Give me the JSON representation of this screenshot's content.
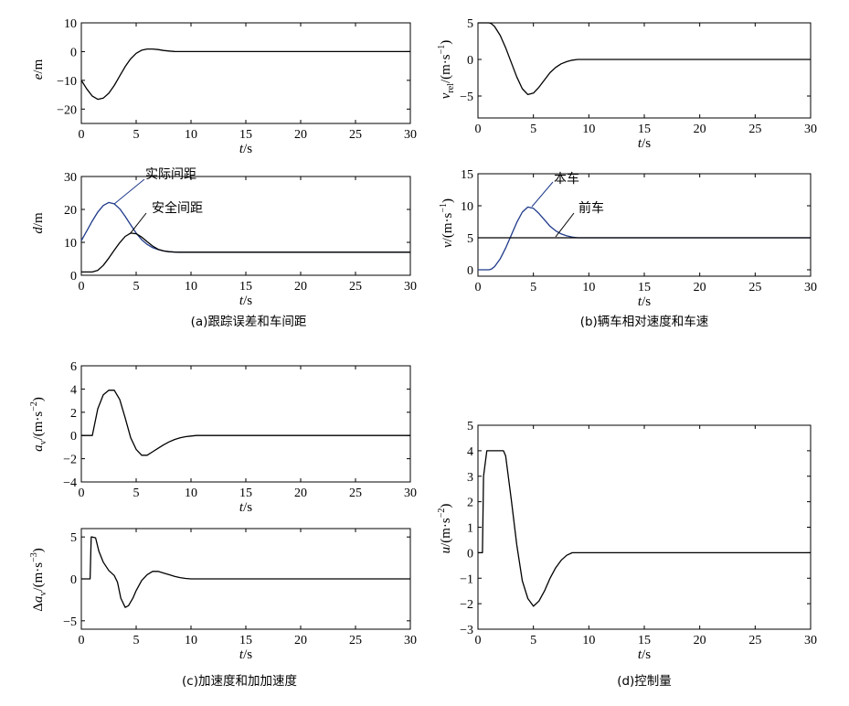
{
  "captions": {
    "a": "(a)跟踪误差和车间距",
    "b": "(b)辆车相对速度和车速",
    "c": "(c)加速度和加加速度",
    "d": "(d)控制量"
  },
  "colors": {
    "black": "#000000",
    "blue": "#1f3a8a"
  },
  "chart_data": [
    {
      "id": "e",
      "type": "line",
      "xlabel": "t/s",
      "ylabel": "e/m",
      "xlim": [
        0,
        30
      ],
      "ylim": [
        -25,
        10
      ],
      "xticks": [
        0,
        5,
        10,
        15,
        20,
        25,
        30
      ],
      "yticks": [
        -20,
        -10,
        0,
        10
      ],
      "series": [
        {
          "color": "#000000",
          "x": [
            0,
            0.5,
            1,
            1.5,
            2,
            2.5,
            3,
            3.5,
            4,
            4.5,
            5,
            5.5,
            6,
            6.5,
            7,
            7.5,
            8,
            8.5,
            9,
            10,
            30
          ],
          "y": [
            -10,
            -13,
            -15.5,
            -16.6,
            -16.2,
            -14.5,
            -11.8,
            -8.5,
            -5.2,
            -2.5,
            -0.6,
            0.5,
            0.9,
            0.9,
            0.7,
            0.4,
            0.2,
            0.05,
            0,
            0,
            0
          ]
        }
      ]
    },
    {
      "id": "d",
      "type": "line",
      "xlabel": "t/s",
      "ylabel": "d/m",
      "xlim": [
        0,
        30
      ],
      "ylim": [
        0,
        30
      ],
      "xticks": [
        0,
        5,
        10,
        15,
        20,
        25,
        30
      ],
      "yticks": [
        0,
        10,
        20,
        30
      ],
      "annotations": [
        "实际间距",
        "安全间距"
      ],
      "series": [
        {
          "color": "#1f3a8a",
          "x": [
            0,
            0.5,
            1,
            1.5,
            2,
            2.5,
            3,
            3.5,
            4,
            4.5,
            5,
            5.5,
            6,
            6.5,
            7,
            7.5,
            8,
            8.5,
            9,
            10,
            30
          ],
          "y": [
            10.5,
            13.5,
            16.5,
            19.2,
            21.2,
            22.1,
            21.7,
            20.2,
            17.9,
            15.3,
            12.8,
            10.8,
            9.4,
            8.4,
            7.8,
            7.4,
            7.2,
            7.05,
            7,
            7,
            7
          ]
        },
        {
          "color": "#000000",
          "x": [
            0,
            0.5,
            1,
            1.5,
            2,
            2.5,
            3,
            3.5,
            4,
            4.5,
            5,
            5.5,
            6,
            6.5,
            7,
            7.5,
            8,
            8.5,
            9,
            10,
            30
          ],
          "y": [
            1,
            1,
            1,
            1.5,
            3,
            5.2,
            7.6,
            9.9,
            11.8,
            12.8,
            12.6,
            11.6,
            10.2,
            8.9,
            7.9,
            7.4,
            7.15,
            7.05,
            7,
            7,
            7
          ]
        }
      ]
    },
    {
      "id": "vrel",
      "type": "line",
      "xlabel": "t/s",
      "ylabel": "vrel/(m·s⁻¹)",
      "xlim": [
        0,
        30
      ],
      "ylim": [
        -8,
        5
      ],
      "xticks": [
        0,
        5,
        10,
        15,
        20,
        25,
        30
      ],
      "yticks": [
        -5,
        0,
        5
      ],
      "series": [
        {
          "color": "#000000",
          "x": [
            0,
            0.5,
            1,
            1.2,
            1.5,
            2,
            2.5,
            3,
            3.5,
            4,
            4.5,
            5,
            5.5,
            6,
            6.5,
            7,
            7.5,
            8,
            8.5,
            9,
            10,
            30
          ],
          "y": [
            5,
            5,
            5,
            4.9,
            4.5,
            3.3,
            1.6,
            -0.4,
            -2.4,
            -4,
            -4.8,
            -4.6,
            -3.8,
            -2.8,
            -1.8,
            -1.1,
            -0.6,
            -0.3,
            -0.1,
            0,
            0,
            0
          ]
        }
      ]
    },
    {
      "id": "v",
      "type": "line",
      "xlabel": "t/s",
      "ylabel": "v/(m·s⁻¹)",
      "xlim": [
        0,
        30
      ],
      "ylim": [
        -1,
        15
      ],
      "xticks": [
        0,
        5,
        10,
        15,
        20,
        25,
        30
      ],
      "yticks": [
        0,
        5,
        10,
        15
      ],
      "annotations": [
        "本车",
        "前车"
      ],
      "series": [
        {
          "color": "#1f3a8a",
          "x": [
            0,
            0.5,
            1,
            1.2,
            1.5,
            2,
            2.5,
            3,
            3.5,
            4,
            4.5,
            5,
            5.5,
            6,
            6.5,
            7,
            7.5,
            8,
            8.5,
            9,
            10,
            30
          ],
          "y": [
            0,
            0,
            0,
            0.1,
            0.5,
            1.7,
            3.4,
            5.4,
            7.4,
            9,
            9.8,
            9.6,
            8.8,
            7.8,
            6.8,
            6.1,
            5.6,
            5.3,
            5.1,
            5,
            5,
            5
          ]
        },
        {
          "color": "#000000",
          "x": [
            0,
            30
          ],
          "y": [
            5,
            5
          ]
        }
      ]
    },
    {
      "id": "a",
      "type": "line",
      "xlabel": "t/s",
      "ylabel": "av/(m·s⁻²)",
      "xlim": [
        0,
        30
      ],
      "ylim": [
        -4,
        6
      ],
      "xticks": [
        0,
        5,
        10,
        15,
        20,
        25,
        30
      ],
      "yticks": [
        -4,
        -2,
        0,
        2,
        4,
        6
      ],
      "series": [
        {
          "color": "#000000",
          "x": [
            0,
            0.5,
            1,
            1.5,
            2,
            2.5,
            3,
            3.5,
            4,
            4.5,
            5,
            5.5,
            6,
            6.5,
            7,
            7.5,
            8,
            8.5,
            9,
            9.5,
            10,
            10.5,
            11,
            12,
            30
          ],
          "y": [
            0,
            0,
            0,
            2.3,
            3.5,
            3.9,
            3.9,
            3.1,
            1.5,
            -0.2,
            -1.2,
            -1.7,
            -1.7,
            -1.4,
            -1.1,
            -0.8,
            -0.55,
            -0.35,
            -0.2,
            -0.1,
            -0.05,
            0,
            0,
            0,
            0
          ]
        }
      ]
    },
    {
      "id": "jerk",
      "type": "line",
      "xlabel": "t/s",
      "ylabel": "Δav/(m·s⁻³)",
      "xlim": [
        0,
        30
      ],
      "ylim": [
        -6,
        6
      ],
      "xticks": [
        0,
        5,
        10,
        15,
        20,
        25,
        30
      ],
      "yticks": [
        -5,
        0,
        5
      ],
      "series": [
        {
          "color": "#000000",
          "x": [
            0,
            0.7,
            0.8,
            0.9,
            1.0,
            1.3,
            1.6,
            2,
            2.5,
            3,
            3.3,
            3.6,
            4,
            4.3,
            4.7,
            5,
            5.5,
            6,
            6.5,
            7,
            7.5,
            8,
            8.5,
            9,
            9.5,
            10,
            11,
            12,
            30
          ],
          "y": [
            0,
            0,
            0,
            5,
            5,
            4.9,
            3.3,
            2,
            1,
            0.4,
            -0.4,
            -2.3,
            -3.4,
            -3.2,
            -2.3,
            -1.4,
            -0.2,
            0.5,
            0.9,
            0.9,
            0.7,
            0.5,
            0.3,
            0.15,
            0.05,
            0,
            0,
            0,
            0
          ]
        }
      ]
    },
    {
      "id": "u",
      "type": "line",
      "xlabel": "t/s",
      "ylabel": "u/(m·s⁻²)",
      "xlim": [
        0,
        30
      ],
      "ylim": [
        -3,
        5
      ],
      "xticks": [
        0,
        5,
        10,
        15,
        20,
        25,
        30
      ],
      "yticks": [
        -3,
        -2,
        -1,
        0,
        1,
        2,
        3,
        4,
        5
      ],
      "series": [
        {
          "color": "#000000",
          "x": [
            0,
            0.4,
            0.5,
            0.8,
            1.0,
            2.3,
            2.5,
            3,
            3.5,
            4,
            4.5,
            5,
            5.5,
            6,
            6.5,
            7,
            7.5,
            8,
            8.5,
            9,
            9.5,
            10,
            30
          ],
          "y": [
            0,
            0,
            3,
            4,
            4,
            4,
            3.8,
            2.1,
            0.3,
            -1.1,
            -1.8,
            -2.1,
            -1.9,
            -1.5,
            -1.0,
            -0.6,
            -0.3,
            -0.1,
            0,
            0,
            0,
            0,
            0
          ]
        }
      ]
    }
  ]
}
